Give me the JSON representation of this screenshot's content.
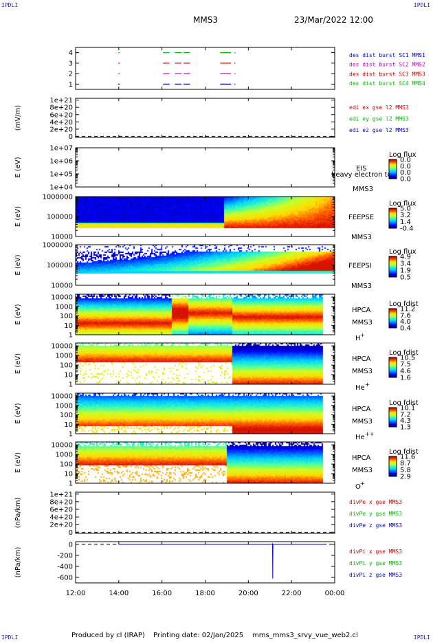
{
  "header": {
    "corner_left_top": "IPDLI",
    "corner_right_top": "IPDLI",
    "corner_left_bottom": "IPDLI",
    "corner_right_bottom": "IPDLI",
    "spacecraft": "MMS3",
    "datetime": "23/Mar/2022 12:00"
  },
  "footer": {
    "produced_by": "Produced by cl (IRAP)",
    "printing_date": "Printing date: 02/Jan/2025",
    "filename": "mms_mms3_srvy_vue_web2.cl"
  },
  "chart_data": {
    "type": "heatmap",
    "time_axis": {
      "start": "12:00",
      "end": "00:00",
      "tick_labels": [
        "12:00",
        "14:00",
        "16:00",
        "18:00",
        "20:00",
        "22:00",
        "00:00"
      ],
      "tick_hours": [
        12,
        14,
        16,
        18,
        20,
        22,
        24
      ]
    },
    "panels": [
      {
        "id": "burst",
        "ylabel": "",
        "yticks": [
          "4",
          "3",
          "2",
          "1"
        ],
        "ytick_values": [
          4,
          3,
          2,
          1
        ],
        "ylim": [
          0.5,
          4.5
        ],
        "legend": [
          {
            "label": "des dist burst SC1 MMS1",
            "color": "#0000cc"
          },
          {
            "label": "des dist burst SC2 MMS2",
            "color": "#cc00cc"
          },
          {
            "label": "des dist burst SC3 MMS3",
            "color": "#cc0000"
          },
          {
            "label": "des dist burst SC4 MMS4",
            "color": "#00bb00"
          }
        ],
        "bursts": [
          {
            "level": 4,
            "color": "#00bb00",
            "intervals": [
              [
                13.98,
                14.05
              ],
              [
                16.05,
                16.35
              ],
              [
                16.6,
                16.9
              ],
              [
                17.0,
                17.3
              ],
              [
                18.7,
                19.2
              ],
              [
                19.35,
                19.4
              ]
            ]
          },
          {
            "level": 3,
            "color": "#cc0000",
            "intervals": [
              [
                13.98,
                14.05
              ],
              [
                16.05,
                16.35
              ],
              [
                16.6,
                16.9
              ],
              [
                17.0,
                17.3
              ],
              [
                18.7,
                19.2
              ],
              [
                19.35,
                19.4
              ]
            ]
          },
          {
            "level": 2,
            "color": "#cc00cc",
            "intervals": [
              [
                13.98,
                14.05
              ],
              [
                16.05,
                16.35
              ],
              [
                16.6,
                16.9
              ],
              [
                17.0,
                17.3
              ],
              [
                18.7,
                19.2
              ],
              [
                19.35,
                19.4
              ]
            ]
          },
          {
            "level": 1,
            "color": "#0000cc",
            "intervals": [
              [
                13.98,
                14.05
              ],
              [
                16.05,
                16.35
              ],
              [
                16.6,
                16.9
              ],
              [
                17.0,
                17.3
              ],
              [
                18.7,
                19.2
              ],
              [
                19.35,
                19.4
              ]
            ]
          }
        ]
      },
      {
        "id": "edi-e",
        "ylabel": "(mV/m)",
        "yticks": [
          "1e+21",
          "8e+20",
          "6e+20",
          "4e+20",
          "2e+20",
          "0"
        ],
        "ytick_values": [
          1e+21,
          8e+20,
          6e+20,
          4e+20,
          2e+20,
          0
        ],
        "ylim": [
          -3e+19,
          1.05e+21
        ],
        "zero_dashed": true,
        "legend": [
          {
            "label": "edi ex gse l2 MMS3",
            "color": "#cc0000"
          },
          {
            "label": "edi ey gse l2 MMS3",
            "color": "#00bb00"
          },
          {
            "label": "edi ez gse l2 MMS3",
            "color": "#0000cc"
          }
        ]
      },
      {
        "id": "eis",
        "ylabel": "E (eV)",
        "yticks": [
          "1e+07",
          "1e+06",
          "1e+05",
          "1e+04"
        ],
        "ytick_values": [
          7,
          6,
          5,
          4
        ],
        "ylim": [
          4,
          7
        ],
        "name_lines": [
          "EIS",
          "MMS3"
        ],
        "overlay": "heavy electron to",
        "colorbar_title": "Log flux",
        "colorbar_ticks": [
          "0.0",
          "0.0",
          "0.0",
          "0.0"
        ]
      },
      {
        "id": "feepse",
        "ylabel": "E (eV)",
        "yticks": [
          "1000000",
          "100000",
          "10000"
        ],
        "ytick_values": [
          6,
          5,
          4
        ],
        "ylim": [
          4,
          6
        ],
        "name_lines": [
          "FEEPSE",
          "MMS3"
        ],
        "colorbar_title": "Log flux",
        "colorbar_ticks": [
          "5.0",
          "3.2",
          "1.4",
          "-0.4"
        ]
      },
      {
        "id": "feepsi",
        "ylabel": "E (eV)",
        "yticks": [
          "1000000",
          "100000",
          "10000"
        ],
        "ytick_values": [
          6,
          5,
          4
        ],
        "ylim": [
          4,
          6
        ],
        "name_lines": [
          "FEEPSI",
          "MMS3"
        ],
        "colorbar_title": "Log flux",
        "colorbar_ticks": [
          "4.9",
          "3.4",
          "1.9",
          "0.5"
        ]
      },
      {
        "id": "hpca-h",
        "ylabel": "E (eV)",
        "yticks": [
          "10000",
          "1000",
          "100",
          "10",
          "1"
        ],
        "ytick_values": [
          4,
          3,
          2,
          1,
          0
        ],
        "ylim": [
          0,
          4.3
        ],
        "name_lines": [
          "HPCA",
          "MMS3"
        ],
        "species": "H",
        "species_sup": "+",
        "colorbar_title": "Log fdist",
        "colorbar_ticks": [
          "11.2",
          "7.6",
          "4.0",
          "0.4"
        ]
      },
      {
        "id": "hpca-he",
        "ylabel": "E (eV)",
        "yticks": [
          "10000",
          "1000",
          "100",
          "10",
          "1"
        ],
        "ytick_values": [
          4,
          3,
          2,
          1,
          0
        ],
        "ylim": [
          0,
          4.3
        ],
        "name_lines": [
          "HPCA",
          "MMS3"
        ],
        "species": "He",
        "species_sup": "+",
        "colorbar_title": "Log fdist",
        "colorbar_ticks": [
          "10.5",
          "7.5",
          "4.6",
          "1.6"
        ]
      },
      {
        "id": "hpca-he2",
        "ylabel": "E (eV)",
        "yticks": [
          "10000",
          "1000",
          "100",
          "10",
          "1"
        ],
        "ytick_values": [
          4,
          3,
          2,
          1,
          0
        ],
        "ylim": [
          0,
          4.3
        ],
        "name_lines": [
          "HPCA",
          "MMS3"
        ],
        "species": "He",
        "species_sup": "++",
        "colorbar_title": "Log fdist",
        "colorbar_ticks": [
          "10.1",
          "7.2",
          "4.3",
          "1.3"
        ]
      },
      {
        "id": "hpca-o",
        "ylabel": "E (eV)",
        "yticks": [
          "10000",
          "1000",
          "100",
          "10",
          "1"
        ],
        "ytick_values": [
          4,
          3,
          2,
          1,
          0
        ],
        "ylim": [
          0,
          4.3
        ],
        "name_lines": [
          "HPCA",
          "MMS3"
        ],
        "species": "O",
        "species_sup": "+",
        "colorbar_title": "Log fdist",
        "colorbar_ticks": [
          "11.6",
          "8.7",
          "5.8",
          "2.9"
        ]
      },
      {
        "id": "divpe",
        "ylabel": "(nPa/km)",
        "yticks": [
          "1e+21",
          "8e+20",
          "6e+20",
          "4e+20",
          "2e+20",
          "0"
        ],
        "ytick_values": [
          1e+21,
          8e+20,
          6e+20,
          4e+20,
          2e+20,
          0
        ],
        "ylim": [
          -3e+19,
          1.05e+21
        ],
        "zero_dashed": true,
        "legend": [
          {
            "label": "divPe x gse MMS3",
            "color": "#cc0000"
          },
          {
            "label": "divPe y gse MMS3",
            "color": "#00bb00"
          },
          {
            "label": "divPe z gse MMS3",
            "color": "#0000cc"
          }
        ]
      },
      {
        "id": "divpi",
        "ylabel": "(nPa/km)",
        "yticks": [
          "0",
          "-200",
          "-400",
          "-600"
        ],
        "ytick_values": [
          0,
          -200,
          -400,
          -600
        ],
        "ylim": [
          -700,
          50
        ],
        "zero_dashed": true,
        "legend": [
          {
            "label": "divPi x gse MMS3",
            "color": "#cc0000"
          },
          {
            "label": "divPi y gse MMS3",
            "color": "#00bb00"
          },
          {
            "label": "divPi z gse MMS3",
            "color": "#0000cc"
          }
        ],
        "trace": {
          "x": [
            14.0,
            21.1,
            21.12,
            21.13,
            21.14,
            21.16,
            23.5
          ],
          "y": [
            0,
            0,
            20,
            -620,
            0,
            0,
            0
          ],
          "color": "#0000cc"
        }
      }
    ]
  }
}
